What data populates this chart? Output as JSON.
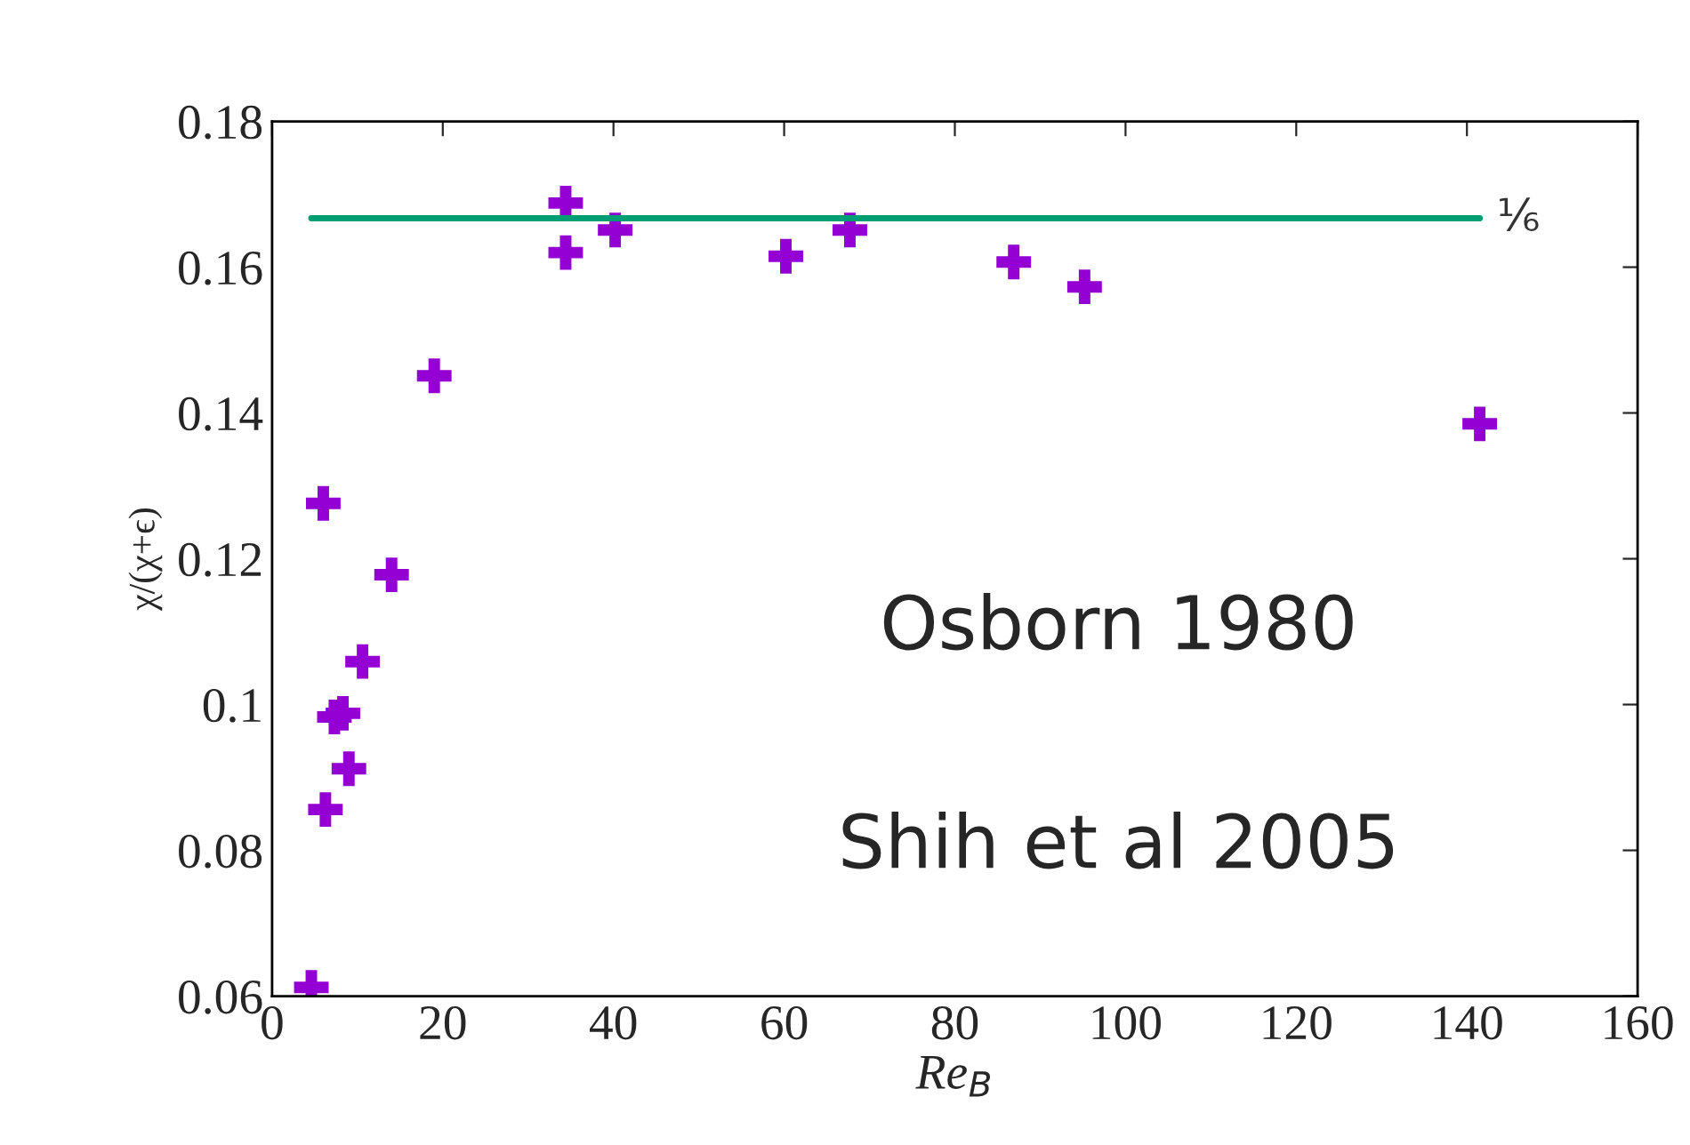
{
  "chart_data": {
    "type": "scatter",
    "xlabel": "Re$_{B}$",
    "ylabel": "χ/(χ+ϵ)",
    "xlim": [
      0,
      160
    ],
    "xticks": [
      0,
      20,
      40,
      60,
      80,
      100,
      120,
      140,
      160
    ],
    "ylim": [
      0.06,
      0.18
    ],
    "yticks": [
      0.06,
      0.08,
      0.1,
      0.12,
      0.14,
      0.16,
      0.18
    ],
    "grid": false,
    "marker": "cross",
    "series": [
      {
        "type": "scatter",
        "color": "#9400d3",
        "x": [
          4.6,
          6.0,
          6.25,
          7.3,
          8.3,
          9.0,
          10.6,
          14.0,
          19.0,
          34.4,
          34.4,
          40.2,
          60.2,
          67.7,
          86.9,
          95.2,
          141.5
        ],
        "values": [
          0.0612,
          0.1276,
          0.0856,
          0.0983,
          0.0988,
          0.0912,
          0.1059,
          0.1178,
          0.1451,
          0.1688,
          0.162,
          0.1651,
          0.1615,
          0.1651,
          0.1607,
          0.1573,
          0.1385
        ]
      },
      {
        "type": "line",
        "marker": "none",
        "name": "⅙",
        "color": "#009e73",
        "x": [
          4.6,
          141.5
        ],
        "values": [
          0.1667,
          0.1667
        ]
      }
    ],
    "annotations": [
      "Osborn 1980",
      "Shih et al 2005"
    ]
  }
}
